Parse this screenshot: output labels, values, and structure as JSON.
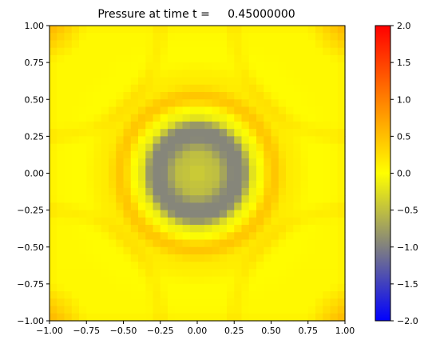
{
  "chart_data": {
    "type": "heatmap",
    "title": "Pressure at time t =     0.45000000",
    "xlabel": "",
    "ylabel": "",
    "xlim": [
      -1.0,
      1.0
    ],
    "ylim": [
      -1.0,
      1.0
    ],
    "grid": false,
    "grid_resolution": [
      40,
      40
    ],
    "x_ticks": [
      "−1.00",
      "−0.75",
      "−0.50",
      "−0.25",
      "0.00",
      "0.25",
      "0.50",
      "0.75",
      "1.00"
    ],
    "y_ticks": [
      "−1.00",
      "−0.75",
      "−0.50",
      "−0.25",
      "0.00",
      "0.25",
      "0.50",
      "0.75",
      "1.00"
    ],
    "colorbar": {
      "range": [
        -2.0,
        2.0
      ],
      "ticks": [
        "2.0",
        "1.5",
        "1.0",
        "0.5",
        "0.0",
        "−0.5",
        "−1.0",
        "−1.5",
        "−2.0"
      ],
      "colormap": [
        {
          "value": -2.0,
          "color": "#0000ff"
        },
        {
          "value": -1.0,
          "color": "#808080"
        },
        {
          "value": 0.0,
          "color": "#ffff00"
        },
        {
          "value": 1.0,
          "color": "#ff8000"
        },
        {
          "value": 2.0,
          "color": "#ff0000"
        }
      ]
    },
    "field": {
      "description_of_pattern": "radial pressure wave centered at origin",
      "rings": [
        {
          "radius": 0.0,
          "value": -0.4
        },
        {
          "radius": 0.12,
          "value": -0.5
        },
        {
          "radius": 0.24,
          "value": -0.95
        },
        {
          "radius": 0.3,
          "value": -0.95
        },
        {
          "radius": 0.4,
          "value": -0.1
        },
        {
          "radius": 0.52,
          "value": 0.45
        },
        {
          "radius": 0.62,
          "value": 0.15
        },
        {
          "radius": 0.8,
          "value": 0.02
        },
        {
          "radius": 1.0,
          "value": 0.05
        }
      ],
      "corner_value": 0.55
    }
  }
}
